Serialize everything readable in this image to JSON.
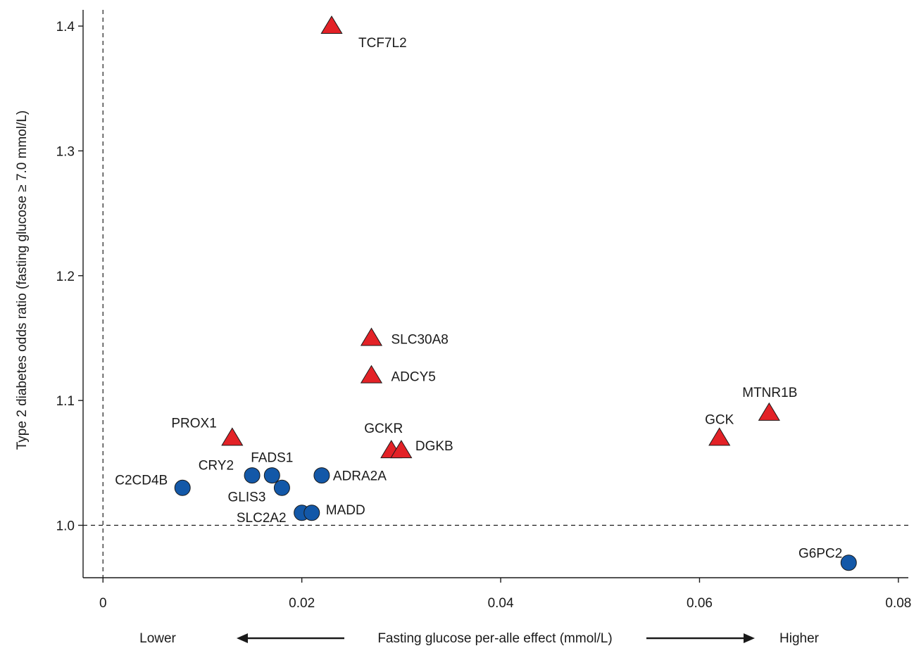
{
  "chart_data": {
    "type": "scatter",
    "title": "",
    "xlabel": "Fasting glucose per-alle effect (mmol/L)",
    "ylabel": "Type 2 diabetes odds ratio (fasting glucose ≥ 7.0 mmol/L)",
    "x_direction_low": "Lower",
    "x_direction_high": "Higher",
    "xlim": [
      -0.002,
      0.081
    ],
    "ylim": [
      0.958,
      1.413
    ],
    "x_ticks": [
      0,
      0.02,
      0.04,
      0.06,
      0.08
    ],
    "x_tick_labels": [
      "0",
      "0.02",
      "0.04",
      "0.06",
      "0.08"
    ],
    "y_ticks": [
      1.0,
      1.1,
      1.2,
      1.3,
      1.4
    ],
    "y_tick_labels": [
      "1.0",
      "1.1",
      "1.2",
      "1.3",
      "1.4"
    ],
    "reference_lines": {
      "x": 0,
      "y": 1.0
    },
    "grid": false,
    "legend": "none",
    "marker_colors": {
      "triangle": "#e32227",
      "circle": "#1358a8"
    },
    "points": [
      {
        "label": "TCF7L2",
        "x": 0.023,
        "y": 1.4,
        "marker": "triangle"
      },
      {
        "label": "SLC30A8",
        "x": 0.027,
        "y": 1.15,
        "marker": "triangle"
      },
      {
        "label": "ADCY5",
        "x": 0.027,
        "y": 1.12,
        "marker": "triangle"
      },
      {
        "label": "PROX1",
        "x": 0.013,
        "y": 1.07,
        "marker": "triangle"
      },
      {
        "label": "GCKR",
        "x": 0.029,
        "y": 1.06,
        "marker": "triangle"
      },
      {
        "label": "DGKB",
        "x": 0.03,
        "y": 1.06,
        "marker": "triangle"
      },
      {
        "label": "GCK",
        "x": 0.062,
        "y": 1.07,
        "marker": "triangle"
      },
      {
        "label": "MTNR1B",
        "x": 0.067,
        "y": 1.09,
        "marker": "triangle"
      },
      {
        "label": "C2CD4B",
        "x": 0.008,
        "y": 1.03,
        "marker": "circle"
      },
      {
        "label": "CRY2",
        "x": 0.015,
        "y": 1.04,
        "marker": "circle"
      },
      {
        "label": "FADS1",
        "x": 0.017,
        "y": 1.04,
        "marker": "circle"
      },
      {
        "label": "GLIS3",
        "x": 0.018,
        "y": 1.03,
        "marker": "circle"
      },
      {
        "label": "ADRA2A",
        "x": 0.022,
        "y": 1.04,
        "marker": "circle"
      },
      {
        "label": "SLC2A2",
        "x": 0.02,
        "y": 1.01,
        "marker": "circle"
      },
      {
        "label": "MADD",
        "x": 0.021,
        "y": 1.01,
        "marker": "circle"
      },
      {
        "label": "G6PC2",
        "x": 0.075,
        "y": 0.97,
        "marker": "circle"
      }
    ]
  }
}
